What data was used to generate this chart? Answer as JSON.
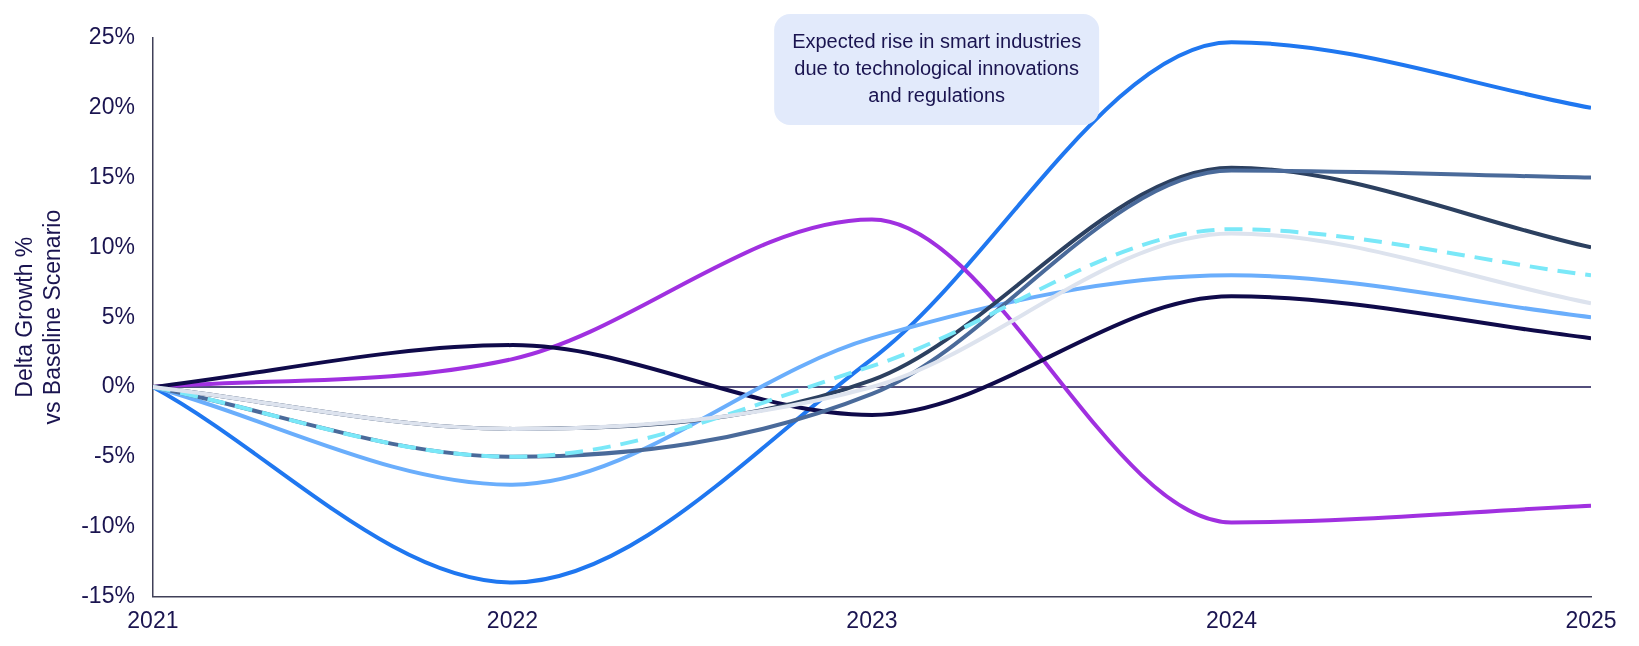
{
  "chart_data": {
    "type": "line",
    "ylabel": "Delta Growth %\nvs Baseline Scenario",
    "x": [
      2021,
      2022,
      2023,
      2024,
      2025
    ],
    "xlim": [
      2021,
      2025
    ],
    "xticks": [
      2021,
      2022,
      2023,
      2024,
      2025
    ],
    "ylim": [
      -15,
      25
    ],
    "yticks": [
      {
        "value": -15,
        "label": "-15%"
      },
      {
        "value": -10,
        "label": "-10%"
      },
      {
        "value": -5,
        "label": "-5%"
      },
      {
        "value": 0,
        "label": "0%"
      },
      {
        "value": 5,
        "label": "5%"
      },
      {
        "value": 10,
        "label": "10%"
      },
      {
        "value": 15,
        "label": "15%"
      },
      {
        "value": 20,
        "label": "20%"
      },
      {
        "value": 25,
        "label": "25%"
      }
    ],
    "grid": false,
    "legend": false,
    "marker": "none",
    "line_style": "solid",
    "ref_lines": [
      {
        "axis": "y",
        "value": 0,
        "color": "#1a1450"
      }
    ],
    "annotations": [
      "Expected rise in smart industries\ndue to technological innovations\nand regulations"
    ],
    "series": [
      {
        "color": "#dde3ee",
        "values": [
          0,
          -3,
          0,
          11,
          6
        ]
      },
      {
        "color": "#7ae8f8",
        "values": [
          0,
          -5,
          1.5,
          11.3,
          8
        ],
        "line_style": "dashed"
      },
      {
        "color": "#4a6a9a",
        "values": [
          0,
          -5,
          -0.5,
          15.5,
          15
        ]
      },
      {
        "color": "#2c4060",
        "values": [
          0,
          -3,
          0.5,
          15.7,
          10
        ]
      },
      {
        "color": "#6aaefc",
        "values": [
          0,
          -7,
          3.5,
          8,
          5
        ]
      },
      {
        "color": "#0f0a4a",
        "values": [
          0,
          3,
          -2,
          6.5,
          3.5
        ]
      },
      {
        "color": "#a030e0",
        "values": [
          0,
          2,
          12,
          -9.7,
          -8.5
        ]
      },
      {
        "color": "#1f77f0",
        "values": [
          0,
          -14,
          2,
          24.7,
          20
        ]
      }
    ]
  }
}
